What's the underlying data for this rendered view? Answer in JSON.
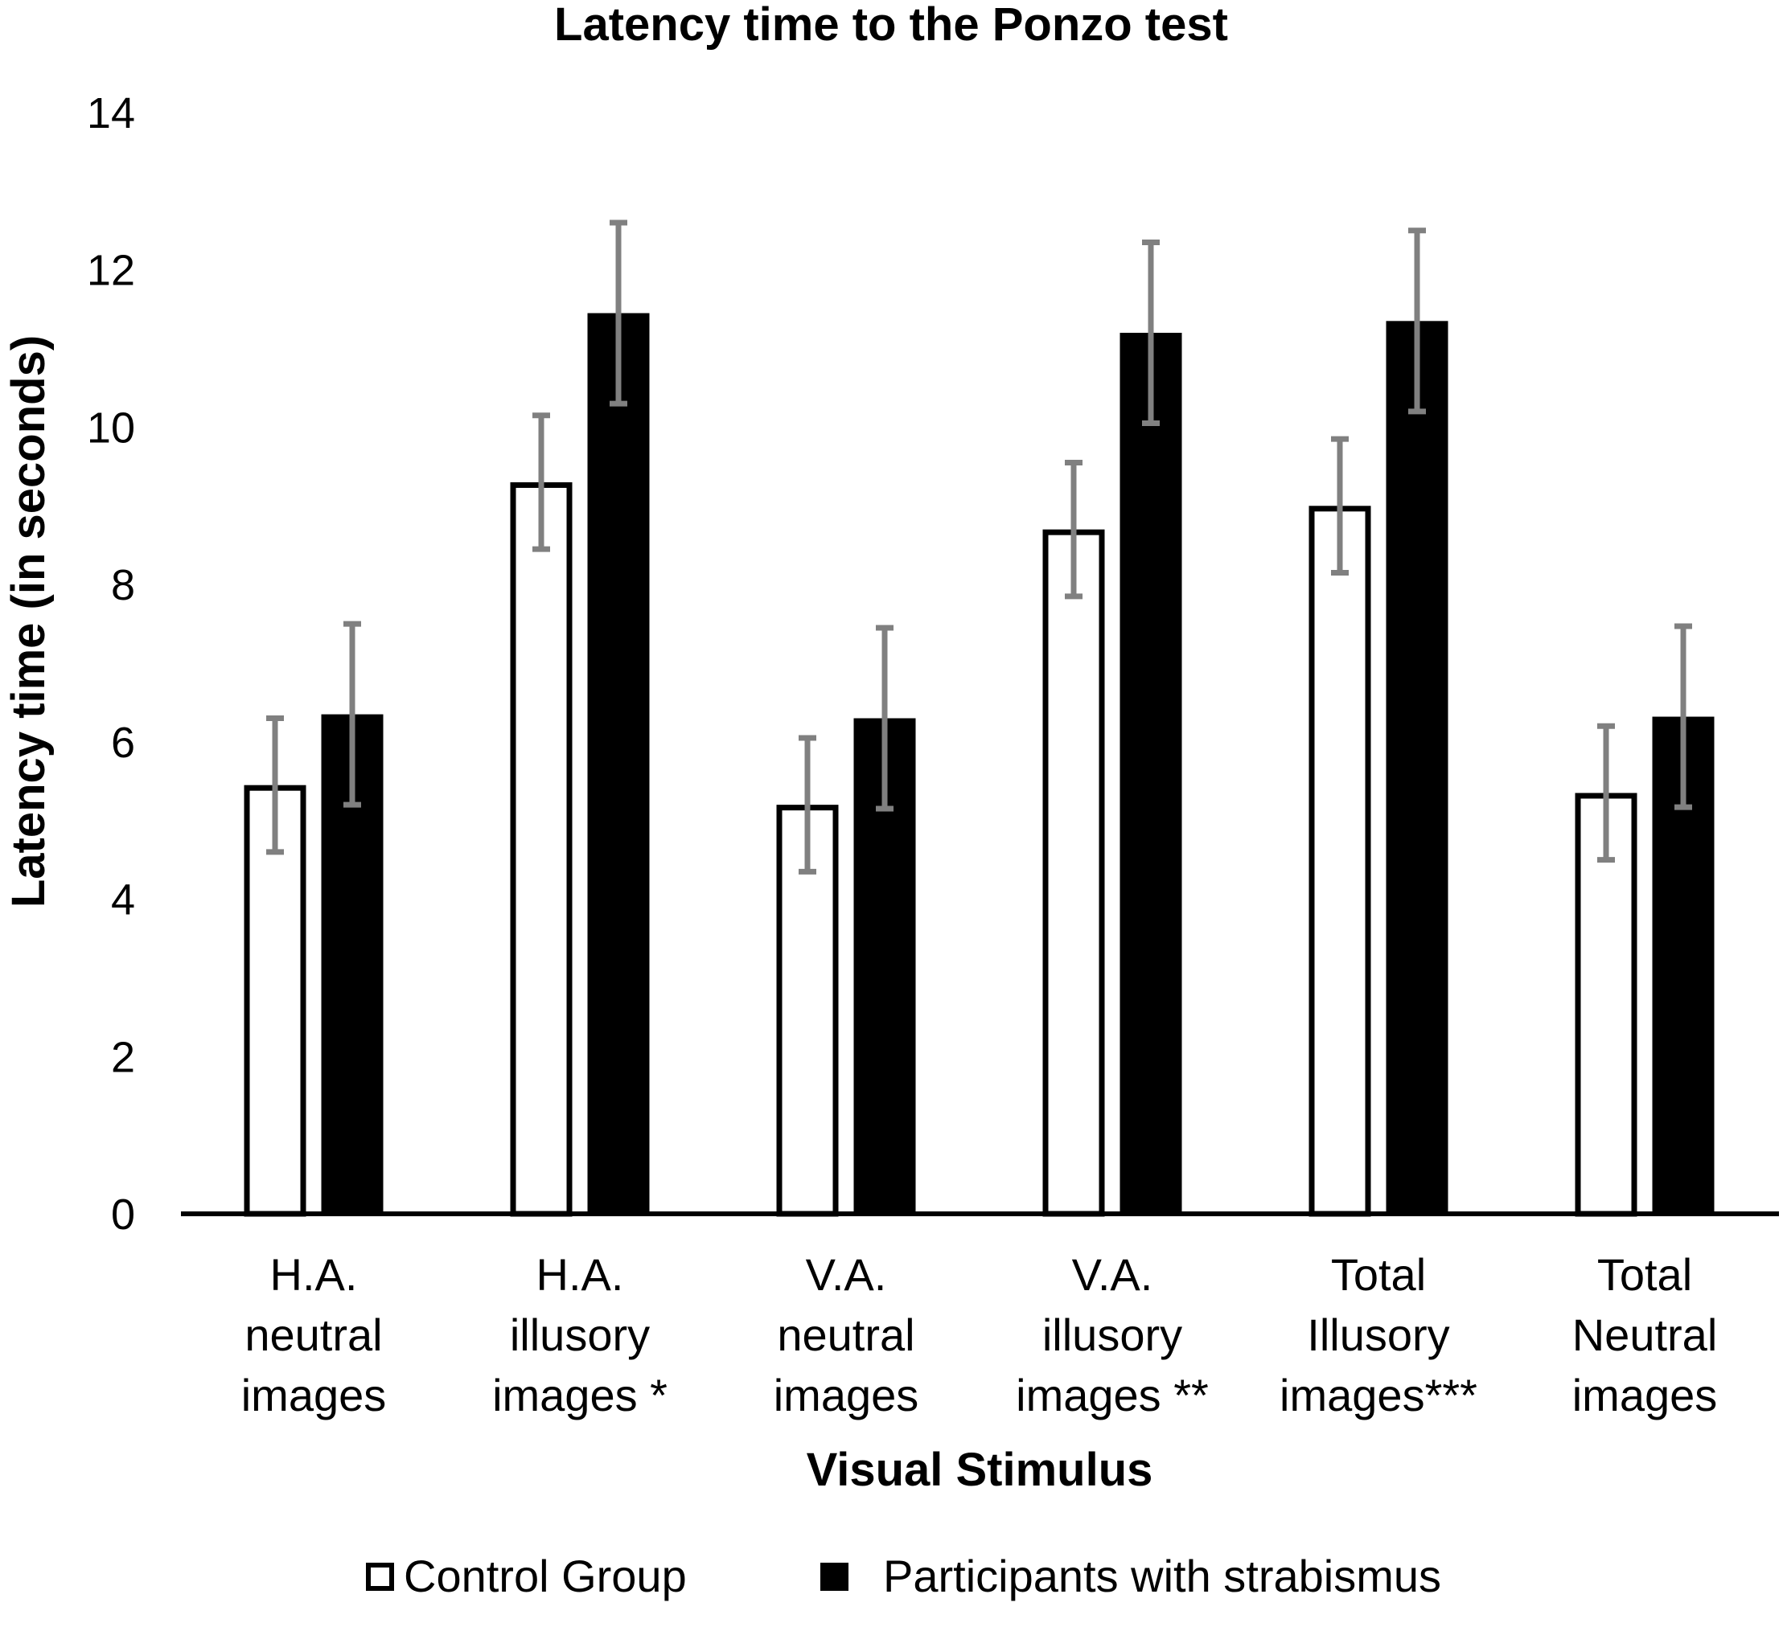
{
  "chart_data": {
    "type": "bar",
    "title": "Latency time to the Ponzo test",
    "xlabel": "Visual Stimulus",
    "ylabel": "Latency time (in seconds)",
    "ylim": [
      0,
      14
    ],
    "yticks": [
      0,
      2,
      4,
      6,
      8,
      10,
      12,
      14
    ],
    "grid": false,
    "legend_position": "bottom",
    "categories": [
      [
        "H.A.",
        "neutral",
        "images"
      ],
      [
        "H.A.",
        "illusory",
        "images *"
      ],
      [
        "V.A.",
        "neutral",
        "images"
      ],
      [
        "V.A.",
        "illusory",
        "images **"
      ],
      [
        "Total",
        "Illusory",
        "images***"
      ],
      [
        "Total",
        "Neutral",
        "images"
      ]
    ],
    "series": [
      {
        "name": "Control Group",
        "fill": "#ffffff",
        "stroke": "#000000",
        "values": [
          5.45,
          9.3,
          5.2,
          8.7,
          9.0,
          5.35
        ],
        "error": [
          0.85,
          0.85,
          0.85,
          0.85,
          0.85,
          0.85
        ]
      },
      {
        "name": "Participants with strabismus",
        "fill": "#000000",
        "stroke": "#000000",
        "values": [
          6.35,
          11.45,
          6.3,
          11.2,
          11.35,
          6.32
        ],
        "error": [
          1.15,
          1.15,
          1.15,
          1.15,
          1.15,
          1.15
        ]
      }
    ],
    "error_bar_color": "#808080"
  }
}
